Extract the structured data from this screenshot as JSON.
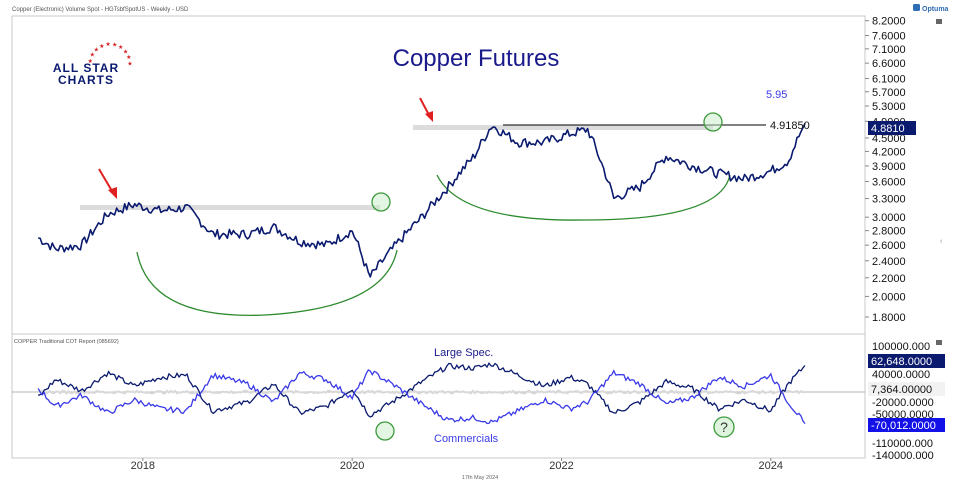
{
  "header": {
    "instrument": "Copper (Electronic) Volume Spot - HGTsbfSpotUS - Weekly - USD",
    "brand": "Optuma",
    "date": "17th May 2024"
  },
  "logo": {
    "line1": "ALL STAR",
    "line2": "CHARTS"
  },
  "colors": {
    "price": "#0a1a6e",
    "large_spec": "#0a1a6e",
    "commercials": "#3a3ae8",
    "arc": "#2e8b2e",
    "circle": "#3c9a3c",
    "arrow": "#e02020",
    "tag_bg": "#0a1a6e"
  },
  "chart_data": [
    {
      "type": "line",
      "title": "Copper Futures",
      "yscale": "log",
      "ylim": [
        1.65,
        8.4
      ],
      "yticks": [
        "8.2000",
        "7.6000",
        "7.1000",
        "6.6000",
        "6.1000",
        "5.7000",
        "5.3000",
        "4.9000",
        "4.5000",
        "4.2000",
        "3.9000",
        "3.6000",
        "3.3000",
        "3.0000",
        "2.8000",
        "2.6000",
        "2.4000",
        "2.2000",
        "2.0000",
        "1.8000"
      ],
      "xticks": [
        "2018",
        "2020",
        "2022",
        "2024"
      ],
      "x": [
        "2017-01",
        "2017-03",
        "2017-06",
        "2017-09",
        "2017-12",
        "2018-03",
        "2018-06",
        "2018-09",
        "2019-01",
        "2019-04",
        "2019-07",
        "2019-10",
        "2020-01",
        "2020-03",
        "2020-06",
        "2020-09",
        "2020-12",
        "2021-03",
        "2021-05",
        "2021-08",
        "2021-11",
        "2022-02",
        "2022-04",
        "2022-07",
        "2022-10",
        "2023-01",
        "2023-04",
        "2023-07",
        "2023-10",
        "2024-01",
        "2024-03",
        "2024-05"
      ],
      "values": [
        2.7,
        2.55,
        2.6,
        3.05,
        3.2,
        3.1,
        3.15,
        2.75,
        2.75,
        2.85,
        2.65,
        2.6,
        2.8,
        2.2,
        2.6,
        3.0,
        3.5,
        4.1,
        4.8,
        4.4,
        4.4,
        4.6,
        4.7,
        3.3,
        3.5,
        4.1,
        3.9,
        3.75,
        3.65,
        3.8,
        4.0,
        4.881
      ],
      "current_value": "4.8810",
      "resistance": "4.91850",
      "annotation_value": "5.95"
    },
    {
      "type": "line",
      "title": "COPPER Traditional COT Report (085692)",
      "ylim": [
        -140000,
        100000
      ],
      "yticks": [
        "100000.000",
        "40000.0000",
        "-20000.0000",
        "-50000.0000",
        "-110000.000",
        "-140000.000"
      ],
      "series": [
        {
          "name": "Large Spec.",
          "values": [
            -10000,
            30000,
            5000,
            45000,
            15000,
            35000,
            40000,
            -40000,
            -20000,
            20000,
            -45000,
            -30000,
            10000,
            -50000,
            -15000,
            25000,
            60000,
            55000,
            65000,
            40000,
            15000,
            35000,
            20000,
            -45000,
            -20000,
            25000,
            10000,
            -35000,
            -15000,
            -40000,
            20000,
            62648
          ]
        },
        {
          "name": "Commercials",
          "values": [
            10000,
            -30000,
            -5000,
            -45000,
            -15000,
            -35000,
            -40000,
            40000,
            20000,
            -20000,
            45000,
            30000,
            -10000,
            50000,
            15000,
            -25000,
            -60000,
            -55000,
            -65000,
            -40000,
            -15000,
            -35000,
            -20000,
            45000,
            20000,
            -25000,
            -10000,
            35000,
            15000,
            40000,
            -20000,
            -70012
          ]
        }
      ],
      "large_spec_value": "62,648.0000",
      "mid_value": "7,364.00000",
      "commercials_value": "-70,012.0000",
      "question_mark": "?"
    }
  ]
}
